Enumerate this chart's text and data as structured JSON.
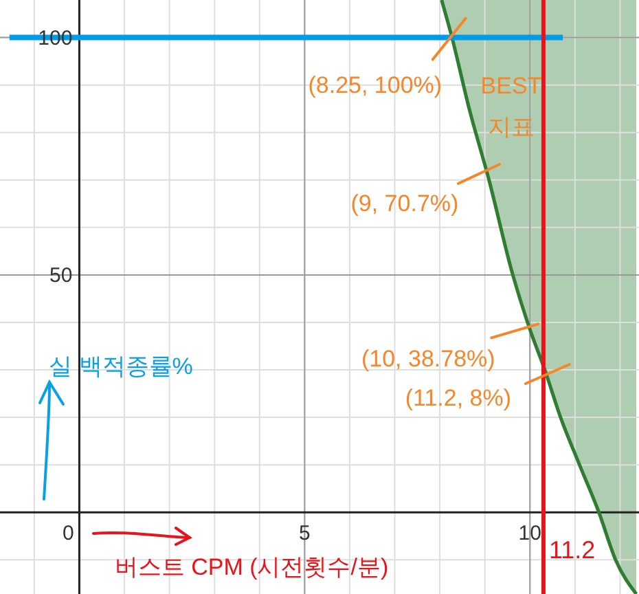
{
  "chart_data": {
    "type": "line",
    "xlabel": "버스트 CPM (시전횟수/분)",
    "ylabel": "실 백적종률%",
    "xlim": [
      -1.76,
      12.42
    ],
    "ylim": [
      -17.2,
      107.9
    ],
    "xticks": [
      {
        "value": -1,
        "label": null
      },
      {
        "value": 0,
        "label": "0"
      },
      {
        "value": 1,
        "label": null
      },
      {
        "value": 2,
        "label": null
      },
      {
        "value": 3,
        "label": null
      },
      {
        "value": 4,
        "label": null
      },
      5,
      {
        "value": 6,
        "label": null
      },
      {
        "value": 7,
        "label": null
      },
      {
        "value": 8,
        "label": null
      },
      {
        "value": 9,
        "label": null
      },
      10,
      {
        "value": 11,
        "label": null
      },
      {
        "value": 12,
        "label": null
      }
    ],
    "yticks": [
      {
        "value": -10,
        "label": null
      },
      {
        "value": 0,
        "label": null
      },
      {
        "value": 10,
        "label": null
      },
      {
        "value": 20,
        "label": null
      },
      {
        "value": 30,
        "label": null
      },
      {
        "value": 40,
        "label": null
      },
      50,
      {
        "value": 60,
        "label": null
      },
      {
        "value": 70,
        "label": null
      },
      {
        "value": 80,
        "label": null
      },
      {
        "value": 90,
        "label": null
      },
      100
    ],
    "grid": true,
    "marker": "none",
    "line_style": "solid",
    "series": [
      {
        "color": "#2e7d32",
        "x": [
          8.04,
          8.27,
          8.66,
          9.08,
          9.62,
          10.0,
          10.33,
          10.68,
          11.1,
          11.53,
          11.9,
          12.36
        ],
        "values": [
          107.9,
          100,
          84.7,
          70.4,
          50,
          38.5,
          30,
          20,
          10,
          0,
          -10,
          -17.2
        ],
        "lower": [
          107.9,
          100,
          84.7,
          70.4,
          50,
          38.5,
          30,
          20,
          10,
          0,
          -10,
          -17.2
        ],
        "upper": [
          107.9,
          107.9,
          107.9,
          107.9,
          107.9,
          107.9,
          107.9,
          107.9,
          107.9,
          107.9,
          107.9,
          107.9
        ]
      },
      {
        "color": "#039be5",
        "x": [
          -1.55,
          10.73
        ],
        "values": [
          100,
          100
        ]
      }
    ],
    "ref_lines": [
      {
        "axis": "x",
        "value": 10.3,
        "color": "#e8141c"
      }
    ],
    "annotations": [
      {
        "text": "(8.25, 100%)",
        "x": 8.27,
        "y": 100
      },
      {
        "text": "(9, 70.7%)",
        "x": 9.08,
        "y": 70.4
      },
      {
        "text": "(10, 38.78%)",
        "x": 10.0,
        "y": 38.5
      },
      {
        "text": "(11.2, 8%)",
        "x": 10.33,
        "y": 30
      },
      "BEST 지표",
      {
        "text": "11.2",
        "x": 10.3,
        "y": -8
      }
    ]
  }
}
